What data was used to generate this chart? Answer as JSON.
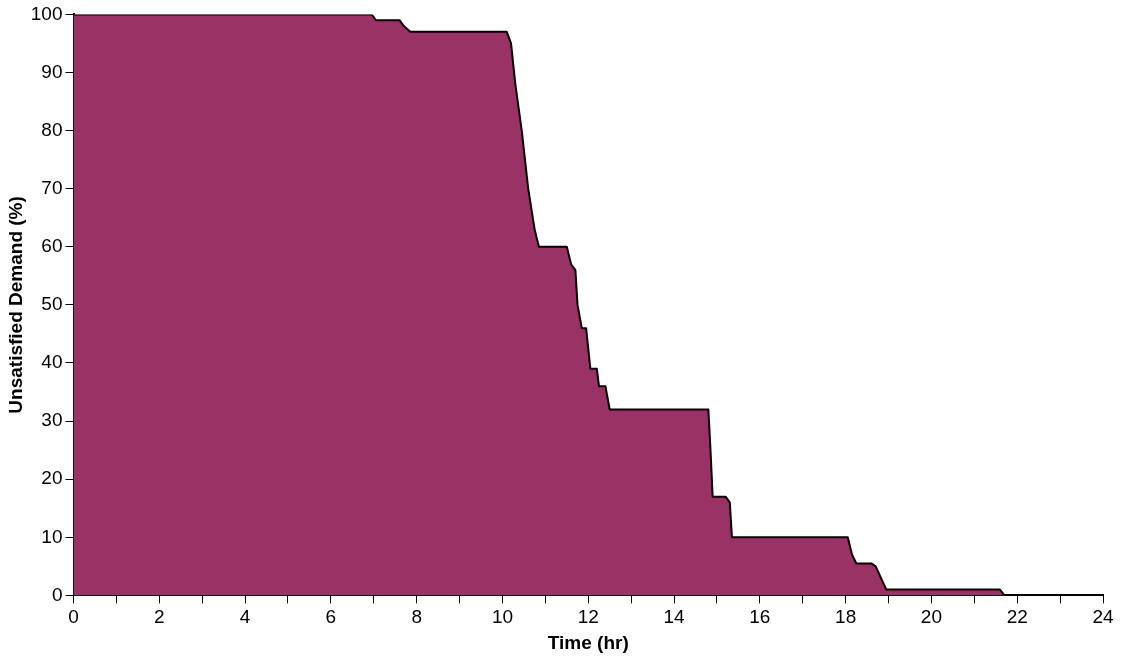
{
  "chart_data": {
    "type": "area",
    "xlabel": "Time (hr)",
    "ylabel": "Unsatisfied Demand (%)",
    "x": [
      0,
      6.95,
      7.05,
      7.6,
      7.7,
      7.85,
      10.1,
      10.2,
      10.3,
      10.45,
      10.6,
      10.75,
      10.85,
      11.5,
      11.6,
      11.7,
      11.75,
      11.85,
      11.95,
      12.05,
      12.2,
      12.25,
      12.4,
      12.5,
      14.8,
      14.85,
      14.9,
      15.2,
      15.3,
      15.35,
      18.05,
      18.15,
      18.25,
      18.6,
      18.7,
      18.95,
      21.6,
      21.7,
      24
    ],
    "series": [
      {
        "color": "#993366",
        "values": [
          100,
          100,
          99,
          99,
          98,
          97,
          97,
          95,
          88,
          80,
          70,
          63,
          60,
          60,
          57,
          56,
          50,
          46,
          46,
          39,
          39,
          36,
          36,
          32,
          32,
          25,
          17,
          17,
          16,
          10,
          10,
          7,
          5.5,
          5.5,
          5,
          1,
          1,
          0,
          0
        ]
      }
    ],
    "xlim": [
      0,
      24
    ],
    "ylim": [
      0,
      100
    ],
    "xticks": [
      0,
      {
        "value": 1,
        "label": null
      },
      2,
      {
        "value": 3,
        "label": null
      },
      4,
      {
        "value": 5,
        "label": null
      },
      6,
      {
        "value": 7,
        "label": null
      },
      8,
      {
        "value": 9,
        "label": null
      },
      10,
      {
        "value": 11,
        "label": null
      },
      12,
      {
        "value": 13,
        "label": null
      },
      14,
      {
        "value": 15,
        "label": null
      },
      16,
      {
        "value": 17,
        "label": null
      },
      18,
      {
        "value": 19,
        "label": null
      },
      20,
      {
        "value": 21,
        "label": null
      },
      22,
      {
        "value": 23,
        "label": null
      },
      24
    ],
    "yticks": [
      0,
      10,
      20,
      30,
      40,
      50,
      60,
      70,
      80,
      90,
      100
    ],
    "grid": false,
    "legend": false
  }
}
